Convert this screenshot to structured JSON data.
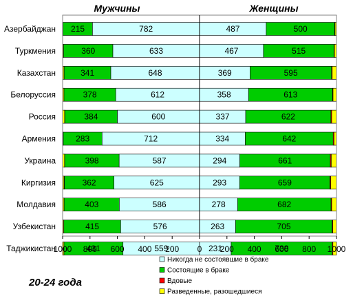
{
  "chart_data": {
    "type": "bar",
    "orientation": "horizontal",
    "stacked": "100%",
    "age_group": "20-24 года",
    "panels": [
      {
        "name": "Мужчины",
        "direction": "reversed",
        "xlim": [
          1000,
          0
        ],
        "ticks": [
          "1000",
          "800",
          "600",
          "400",
          "200",
          "0"
        ]
      },
      {
        "name": "Женщины",
        "direction": "normal",
        "xlim": [
          0,
          1000
        ],
        "ticks": [
          "0",
          "200",
          "400",
          "600",
          "800",
          "1000"
        ]
      }
    ],
    "categories": [
      "Азербайджан",
      "Туркмения",
      "Казахстан",
      "Белоруссия",
      "Россия",
      "Армения",
      "Украина",
      "Киргизия",
      "Молдавия",
      "Узбекистан",
      "Таджикистан"
    ],
    "series": [
      {
        "name": "Никогда  не состоявшие в браке",
        "color": "#ccffff",
        "men": [
          782,
          633,
          648,
          612,
          600,
          712,
          587,
          625,
          586,
          576,
          559
        ],
        "women": [
          487,
          467,
          369,
          358,
          337,
          334,
          294,
          293,
          278,
          263,
          231
        ]
      },
      {
        "name": "Состоящие в браке",
        "color": "#00cc00",
        "men": [
          215,
          360,
          341,
          378,
          384,
          283,
          398,
          362,
          403,
          415,
          431
        ],
        "women": [
          500,
          515,
          595,
          613,
          622,
          642,
          661,
          659,
          682,
          705,
          738
        ]
      },
      {
        "name": "Вдовые",
        "color": "#ff0000",
        "men": [
          1,
          1,
          1,
          1,
          1,
          1,
          1,
          3,
          1,
          1,
          1
        ],
        "women": [
          3,
          3,
          5,
          4,
          6,
          6,
          7,
          6,
          5,
          5,
          5
        ]
      },
      {
        "name": "Разведенные, разошедшиеся",
        "color": "#ffff00",
        "men": [
          2,
          6,
          10,
          9,
          15,
          4,
          14,
          10,
          10,
          8,
          9
        ],
        "women": [
          10,
          15,
          31,
          25,
          35,
          18,
          38,
          42,
          35,
          27,
          26
        ]
      }
    ],
    "legend_position": "bottom-right",
    "grid": false
  }
}
